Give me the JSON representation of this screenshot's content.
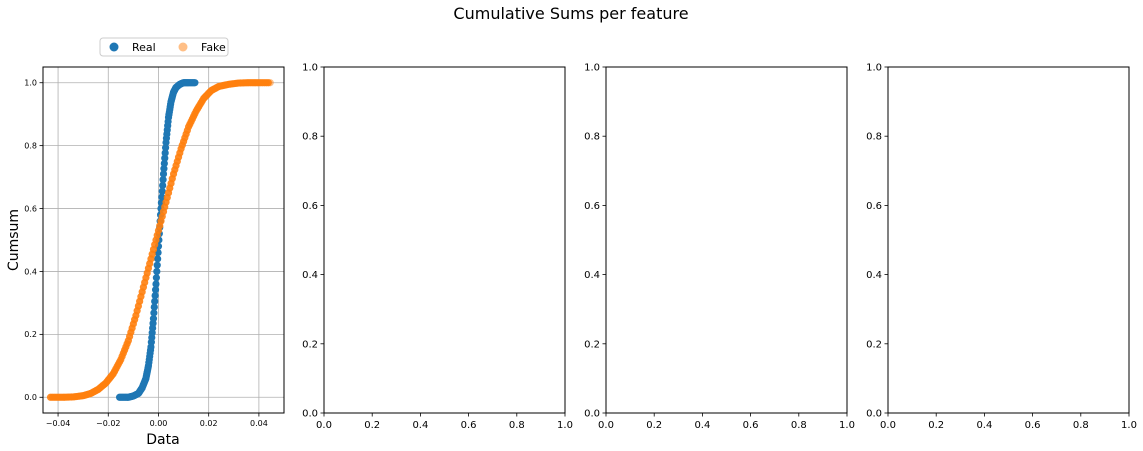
{
  "figure": {
    "title": "Cumulative Sums per feature"
  },
  "legend": {
    "entries": [
      {
        "label": "Real",
        "color": "#1f77b4"
      },
      {
        "label": "Fake",
        "color": "#ff7f0e"
      }
    ]
  },
  "chart_data": [
    {
      "type": "scatter",
      "title": "",
      "xlabel": "Data",
      "ylabel": "Cumsum",
      "xlim": [
        -0.046,
        0.05
      ],
      "ylim": [
        -0.05,
        1.05
      ],
      "xticks": [
        -0.04,
        -0.02,
        0.0,
        0.02,
        0.04
      ],
      "xtick_labels": [
        "−0.04",
        "−0.02",
        "0.00",
        "0.02",
        "0.04"
      ],
      "yticks": [
        0.0,
        0.2,
        0.4,
        0.6,
        0.8,
        1.0
      ],
      "ytick_labels": [
        "0.0",
        "0.2",
        "0.4",
        "0.6",
        "0.8",
        "1.0"
      ],
      "grid": true,
      "legend_position": "above the plot",
      "series": [
        {
          "name": "Real",
          "color": "#1f77b4",
          "x": [
            -0.0155,
            -0.012,
            -0.01,
            -0.008,
            -0.0065,
            -0.005,
            -0.004,
            -0.003,
            -0.002,
            -0.001,
            0.0,
            0.001,
            0.002,
            0.003,
            0.004,
            0.005,
            0.006,
            0.007,
            0.0085,
            0.01,
            0.012,
            0.0145
          ],
          "y": [
            0.0,
            0.0,
            0.004,
            0.012,
            0.03,
            0.06,
            0.1,
            0.16,
            0.25,
            0.36,
            0.48,
            0.6,
            0.71,
            0.81,
            0.89,
            0.94,
            0.97,
            0.985,
            0.995,
            1.0,
            1.0,
            1.0
          ]
        },
        {
          "name": "Fake",
          "color": "#ff7f0e",
          "x": [
            -0.043,
            -0.038,
            -0.034,
            -0.03,
            -0.027,
            -0.024,
            -0.021,
            -0.018,
            -0.015,
            -0.012,
            -0.009,
            -0.006,
            -0.003,
            0.0,
            0.003,
            0.006,
            0.009,
            0.012,
            0.015,
            0.018,
            0.021,
            0.024,
            0.028,
            0.032,
            0.036,
            0.04,
            0.0445
          ],
          "y": [
            0.0,
            0.0,
            0.001,
            0.005,
            0.012,
            0.025,
            0.045,
            0.075,
            0.12,
            0.18,
            0.26,
            0.35,
            0.44,
            0.53,
            0.62,
            0.71,
            0.79,
            0.86,
            0.91,
            0.95,
            0.975,
            0.988,
            0.995,
            0.999,
            1.0,
            1.0,
            1.0
          ]
        }
      ]
    },
    {
      "type": "scatter",
      "title": "",
      "xlabel": "",
      "ylabel": "",
      "xlim": [
        0,
        1
      ],
      "ylim": [
        0,
        1
      ],
      "xticks": [
        0.0,
        0.2,
        0.4,
        0.6,
        0.8,
        1.0
      ],
      "xtick_labels": [
        "0.0",
        "0.2",
        "0.4",
        "0.6",
        "0.8",
        "1.0"
      ],
      "yticks": [
        0.0,
        0.2,
        0.4,
        0.6,
        0.8,
        1.0
      ],
      "ytick_labels": [
        "0.0",
        "0.2",
        "0.4",
        "0.6",
        "0.8",
        "1.0"
      ],
      "grid": false,
      "series": []
    },
    {
      "type": "scatter",
      "title": "",
      "xlabel": "",
      "ylabel": "",
      "xlim": [
        0,
        1
      ],
      "ylim": [
        0,
        1
      ],
      "xticks": [
        0.0,
        0.2,
        0.4,
        0.6,
        0.8,
        1.0
      ],
      "xtick_labels": [
        "0.0",
        "0.2",
        "0.4",
        "0.6",
        "0.8",
        "1.0"
      ],
      "yticks": [
        0.0,
        0.2,
        0.4,
        0.6,
        0.8,
        1.0
      ],
      "ytick_labels": [
        "0.0",
        "0.2",
        "0.4",
        "0.6",
        "0.8",
        "1.0"
      ],
      "grid": false,
      "series": []
    },
    {
      "type": "scatter",
      "title": "",
      "xlabel": "",
      "ylabel": "",
      "xlim": [
        0,
        1
      ],
      "ylim": [
        0,
        1
      ],
      "xticks": [
        0.0,
        0.2,
        0.4,
        0.6,
        0.8,
        1.0
      ],
      "xtick_labels": [
        "0.0",
        "0.2",
        "0.4",
        "0.6",
        "0.8",
        "1.0"
      ],
      "yticks": [
        0.0,
        0.2,
        0.4,
        0.6,
        0.8,
        1.0
      ],
      "ytick_labels": [
        "0.0",
        "0.2",
        "0.4",
        "0.6",
        "0.8",
        "1.0"
      ],
      "grid": false,
      "series": []
    }
  ]
}
